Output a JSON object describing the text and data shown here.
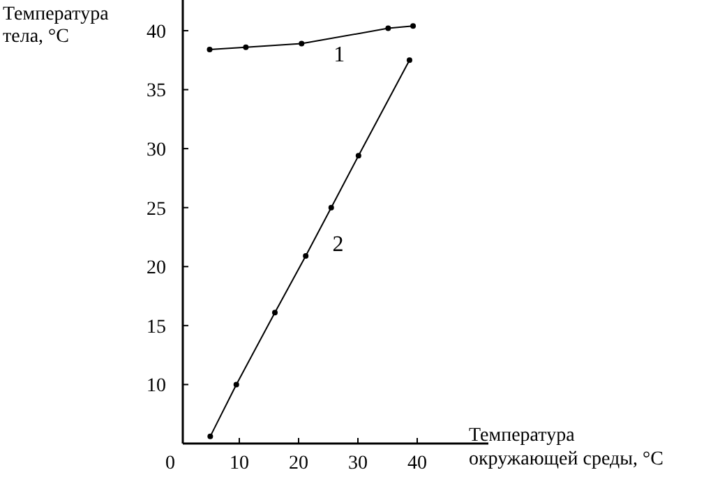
{
  "chart_data": {
    "type": "line",
    "xlabel": "Температура окружающей среды, °C",
    "ylabel": "Температура тела, °C",
    "xlim": [
      0,
      52
    ],
    "ylim": [
      5,
      42.6
    ],
    "xticks": [
      0,
      10,
      20,
      30,
      40
    ],
    "yticks": [
      10,
      15,
      20,
      25,
      30,
      35,
      40
    ],
    "marker": "circle",
    "line_style": "solid",
    "series": [
      {
        "name": "1",
        "color": "#000000",
        "x": [
          5.0,
          11.1,
          20.5,
          35.1,
          39.3
        ],
        "values": [
          38.4,
          38.6,
          38.9,
          40.2,
          40.4
        ]
      },
      {
        "name": "2",
        "color": "#000000",
        "x": [
          5.1,
          9.5,
          16.0,
          21.2,
          25.5,
          30.1,
          38.7
        ],
        "values": [
          5.6,
          10.0,
          16.1,
          20.9,
          25.0,
          29.4,
          37.5
        ]
      }
    ]
  }
}
